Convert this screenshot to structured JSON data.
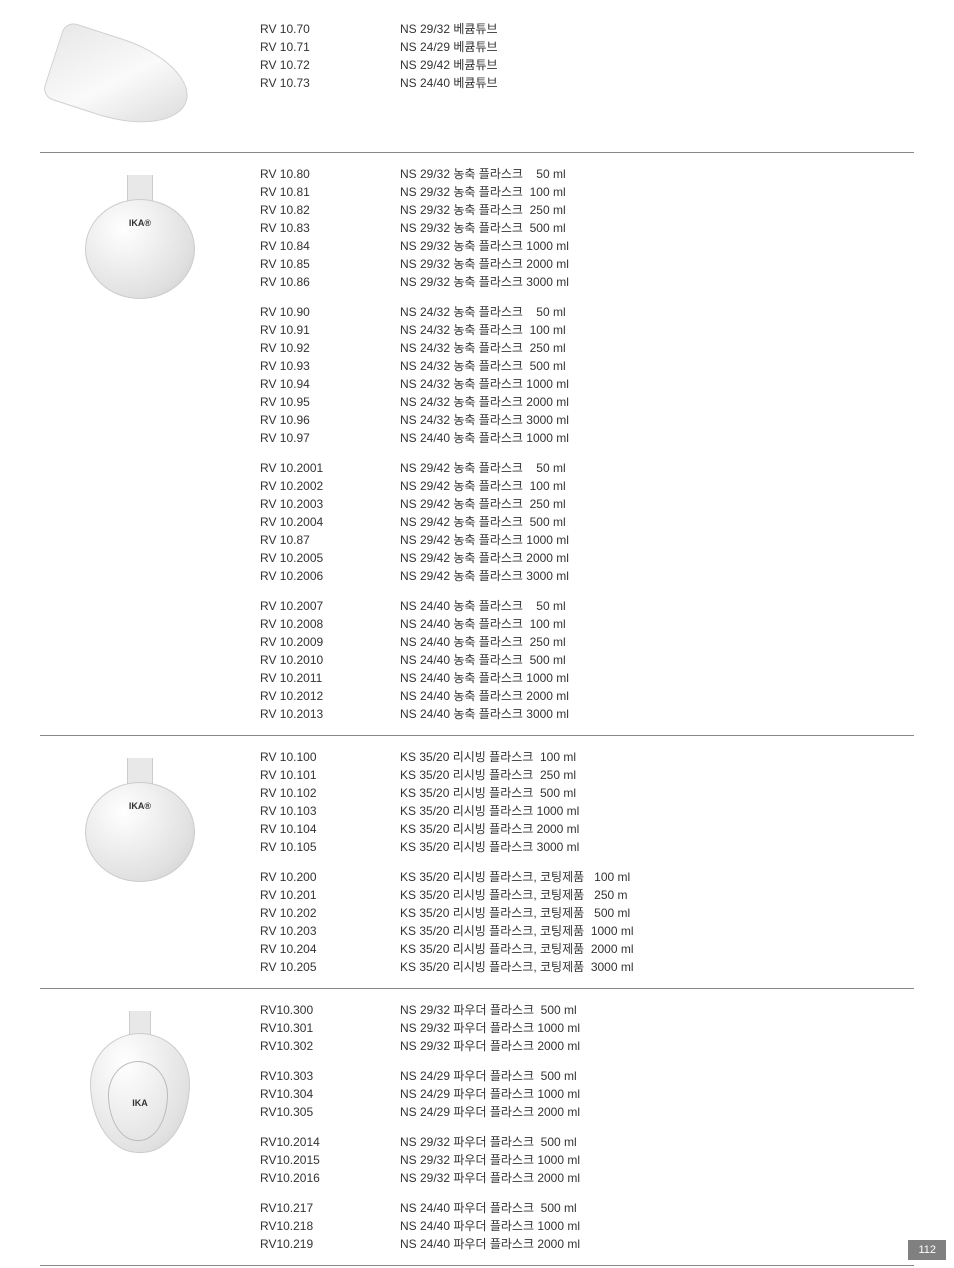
{
  "page_number": "112",
  "sections": [
    {
      "image": "vacuum-tube",
      "image_label": "",
      "groups": [
        [
          {
            "code": "RV 10.70",
            "desc": "NS 29/32 베큠튜브"
          },
          {
            "code": "RV 10.71",
            "desc": "NS 24/29 베큠튜브"
          },
          {
            "code": "RV 10.72",
            "desc": "NS 29/42 베큠튜브"
          },
          {
            "code": "RV 10.73",
            "desc": "NS 24/40 베큠튜브"
          }
        ]
      ]
    },
    {
      "image": "flask-ika",
      "image_label": "IKA®",
      "groups": [
        [
          {
            "code": "RV 10.80",
            "desc": "NS 29/32 농축 플라스크    50 ml"
          },
          {
            "code": "RV 10.81",
            "desc": "NS 29/32 농축 플라스크  100 ml"
          },
          {
            "code": "RV 10.82",
            "desc": "NS 29/32 농축 플라스크  250 ml"
          },
          {
            "code": "RV 10.83",
            "desc": "NS 29/32 농축 플라스크  500 ml"
          },
          {
            "code": "RV 10.84",
            "desc": "NS 29/32 농축 플라스크 1000 ml"
          },
          {
            "code": "RV 10.85",
            "desc": "NS 29/32 농축 플라스크 2000 ml"
          },
          {
            "code": "RV 10.86",
            "desc": "NS 29/32 농축 플라스크 3000 ml"
          }
        ],
        [
          {
            "code": "RV 10.90",
            "desc": "NS 24/32 농축 플라스크    50 ml"
          },
          {
            "code": "RV 10.91",
            "desc": "NS 24/32 농축 플라스크  100 ml"
          },
          {
            "code": "RV 10.92",
            "desc": "NS 24/32 농축 플라스크  250 ml"
          },
          {
            "code": "RV 10.93",
            "desc": "NS 24/32 농축 플라스크  500 ml"
          },
          {
            "code": "RV 10.94",
            "desc": "NS 24/32 농축 플라스크 1000 ml"
          },
          {
            "code": "RV 10.95",
            "desc": "NS 24/32 농축 플라스크 2000 ml"
          },
          {
            "code": "RV 10.96",
            "desc": "NS 24/32 농축 플라스크 3000 ml"
          },
          {
            "code": "RV 10.97",
            "desc": "NS 24/40 농축 플라스크 1000 ml"
          }
        ],
        [
          {
            "code": "RV 10.2001",
            "desc": "NS 29/42 농축 플라스크    50 ml"
          },
          {
            "code": "RV 10.2002",
            "desc": "NS 29/42 농축 플라스크  100 ml"
          },
          {
            "code": "RV 10.2003",
            "desc": "NS 29/42 농축 플라스크  250 ml"
          },
          {
            "code": "RV 10.2004",
            "desc": "NS 29/42 농축 플라스크  500 ml"
          },
          {
            "code": "RV 10.87",
            "desc": "NS 29/42 농축 플라스크 1000 ml"
          },
          {
            "code": "RV 10.2005",
            "desc": "NS 29/42 농축 플라스크 2000 ml"
          },
          {
            "code": "RV 10.2006",
            "desc": "NS 29/42 농축 플라스크 3000 ml"
          }
        ],
        [
          {
            "code": "RV 10.2007",
            "desc": "NS 24/40 농축 플라스크    50 ml"
          },
          {
            "code": "RV 10.2008",
            "desc": "NS 24/40 농축 플라스크  100 ml"
          },
          {
            "code": "RV 10.2009",
            "desc": "NS 24/40 농축 플라스크  250 ml"
          },
          {
            "code": "RV 10.2010",
            "desc": "NS 24/40 농축 플라스크  500 ml"
          },
          {
            "code": "RV 10.2011",
            "desc": "NS 24/40 농축 플라스크 1000 ml"
          },
          {
            "code": "RV 10.2012",
            "desc": "NS 24/40 농축 플라스크 2000 ml"
          },
          {
            "code": "RV 10.2013",
            "desc": "NS 24/40 농축 플라스크 3000 ml"
          }
        ]
      ]
    },
    {
      "image": "flask-ika",
      "image_label": "IKA®",
      "groups": [
        [
          {
            "code": "RV 10.100",
            "desc": "KS 35/20 리시빙 플라스크  100 ml"
          },
          {
            "code": "RV 10.101",
            "desc": "KS 35/20 리시빙 플라스크  250 ml"
          },
          {
            "code": "RV 10.102",
            "desc": "KS 35/20 리시빙 플라스크  500 ml"
          },
          {
            "code": "RV 10.103",
            "desc": "KS 35/20 리시빙 플라스크 1000 ml"
          },
          {
            "code": "RV 10.104",
            "desc": "KS 35/20 리시빙 플라스크 2000 ml"
          },
          {
            "code": "RV 10.105",
            "desc": "KS 35/20 리시빙 플라스크 3000 ml"
          }
        ],
        [
          {
            "code": "RV 10.200",
            "desc": "KS 35/20 리시빙 플라스크, 코팅제품   100 ml"
          },
          {
            "code": "RV 10.201",
            "desc": "KS 35/20 리시빙 플라스크, 코팅제품   250 m"
          },
          {
            "code": "RV 10.202",
            "desc": "KS 35/20 리시빙 플라스크, 코팅제품   500 ml"
          },
          {
            "code": "RV 10.203",
            "desc": "KS 35/20 리시빙 플라스크, 코팅제품  1000 ml"
          },
          {
            "code": "RV 10.204",
            "desc": "KS 35/20 리시빙 플라스크, 코팅제품  2000 ml"
          },
          {
            "code": "RV 10.205",
            "desc": "KS 35/20 리시빙 플라스크, 코팅제품  3000 ml"
          }
        ]
      ]
    },
    {
      "image": "powder-flask",
      "image_label": "IKA",
      "groups": [
        [
          {
            "code": "RV10.300",
            "desc": "NS 29/32 파우더 플라스크  500 ml"
          },
          {
            "code": "RV10.301",
            "desc": "NS 29/32 파우더 플라스크 1000 ml"
          },
          {
            "code": "RV10.302",
            "desc": "NS 29/32 파우더 플라스크 2000 ml"
          }
        ],
        [
          {
            "code": "RV10.303",
            "desc": "NS 24/29 파우더 플라스크  500 ml"
          },
          {
            "code": "RV10.304",
            "desc": "NS 24/29 파우더 플라스크 1000 ml"
          },
          {
            "code": "RV10.305",
            "desc": "NS 24/29 파우더 플라스크 2000 ml"
          }
        ],
        [
          {
            "code": "RV10.2014",
            "desc": "NS 29/32 파우더 플라스크  500 ml"
          },
          {
            "code": "RV10.2015",
            "desc": "NS 29/32 파우더 플라스크 1000 ml"
          },
          {
            "code": "RV10.2016",
            "desc": "NS 29/32 파우더 플라스크 2000 ml"
          }
        ],
        [
          {
            "code": "RV10.217",
            "desc": "NS 24/40 파우더 플라스크  500 ml"
          },
          {
            "code": "RV10.218",
            "desc": "NS 24/40 파우더 플라스크 1000 ml"
          },
          {
            "code": "RV10.219",
            "desc": "NS 24/40 파우더 플라스크 2000 ml"
          }
        ]
      ]
    }
  ]
}
